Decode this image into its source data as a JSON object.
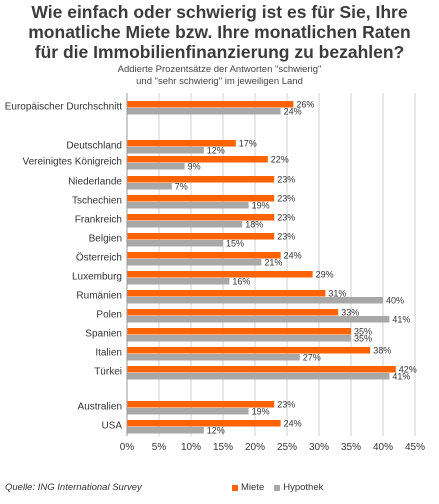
{
  "chart_data": {
    "type": "bar",
    "orientation": "horizontal",
    "title_lines": [
      "Wie einfach oder schwierig ist es für Sie, Ihre",
      "monatliche Miete bzw. Ihre monatlichen Raten",
      "für die Immobilienfinanzierung zu bezahlen?"
    ],
    "subtitle_lines": [
      "Addierte Prozentsätze der Antworten \"schwierig\"",
      "und \"sehr schwierig\" im jeweiligen Land"
    ],
    "categories": [
      "Europäischer Durchschnitt",
      "Deutschland",
      "Vereinigtes Königreich",
      "Niederlande",
      "Tschechien",
      "Frankreich",
      "Belgien",
      "Österreich",
      "Luxemburg",
      "Rumänien",
      "Polen",
      "Spanien",
      "Italien",
      "Türkei",
      "Australien",
      "USA"
    ],
    "series": [
      {
        "name": "Miete",
        "color": "#ff6200",
        "values": [
          26,
          17,
          22,
          23,
          23,
          23,
          23,
          24,
          29,
          31,
          33,
          35,
          38,
          42,
          23,
          24
        ],
        "labels": [
          "26%",
          "17%",
          "22%",
          "23%",
          "23%",
          "23%",
          "23%",
          "24%",
          "29%",
          "31%",
          "33%",
          "35%",
          "38%",
          "42%",
          "23%",
          "24%"
        ]
      },
      {
        "name": "Hypothek",
        "color": "#a8a8a8",
        "values": [
          24,
          12,
          9,
          7,
          19,
          18,
          15,
          21,
          16,
          40,
          41,
          35,
          27,
          41,
          19,
          12
        ],
        "labels": [
          "24%",
          "12%",
          "9%",
          "7%",
          "19%",
          "18%",
          "15%",
          "21%",
          "16%",
          "40%",
          "41%",
          "35%",
          "27%",
          "41%",
          "19%",
          "12%"
        ]
      }
    ],
    "xlim": [
      0,
      45
    ],
    "xticks": [
      "0%",
      "5%",
      "10%",
      "15%",
      "20%",
      "25%",
      "30%",
      "35%",
      "40%",
      "45%"
    ],
    "grid": true,
    "legend_position": "bottom"
  },
  "source": "Quelle: ING International Survey",
  "legend": {
    "miete": "Miete",
    "hypothek": "Hypothek"
  }
}
